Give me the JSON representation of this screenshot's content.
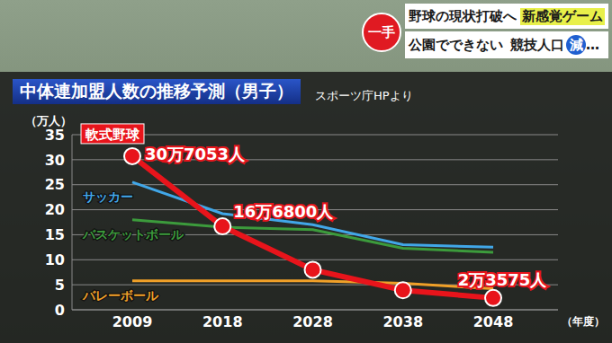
{
  "chart_data": {
    "type": "line",
    "title": "中体連加盟人数の推移予測（男子）",
    "subtitle": "スポーツ庁HPより",
    "y_label": "（万人）",
    "x_label": "（年度）",
    "categories": [
      "2009",
      "2018",
      "2028",
      "2038",
      "2048"
    ],
    "series": [
      {
        "name": "軟式野球",
        "color": "#e8141b",
        "marker": "circle",
        "data_labels": true,
        "values": [
          30.7053,
          16.68,
          8.0,
          3.9,
          2.3575
        ],
        "value_labels": [
          "30万7053人",
          "16万6800人",
          null,
          null,
          "2万3575人"
        ]
      },
      {
        "name": "サッカー",
        "color": "#41a7e8",
        "values": [
          25.5,
          19.2,
          17,
          13,
          12.5
        ]
      },
      {
        "name": "バスケットボール",
        "color": "#3c9b3c",
        "values": [
          18,
          16.5,
          16,
          12.3,
          11.5
        ]
      },
      {
        "name": "バレーボール",
        "color": "#f0a028",
        "values": [
          5.8,
          5.8,
          5.8,
          5.3,
          4.2
        ]
      }
    ],
    "ylim": [
      0,
      35
    ],
    "yticks": [
      0,
      5,
      10,
      15,
      20,
      25,
      30,
      35
    ],
    "grid": true
  },
  "banner": {
    "badge": "一手",
    "line1": [
      "野球の現状打破へ",
      "新感覚ゲーム"
    ],
    "line2": [
      "公園でできない",
      "競技人口",
      "減",
      "…"
    ]
  }
}
